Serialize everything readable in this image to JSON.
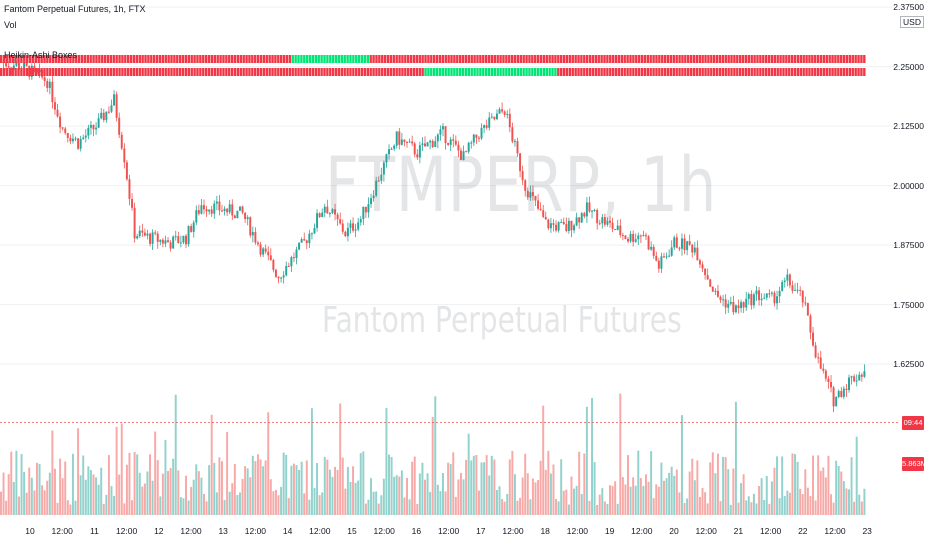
{
  "legend": {
    "title": "Fantom Perpetual Futures, 1h, FTX",
    "volume": "Vol",
    "indicator": "Heikin-Ashi Boxes"
  },
  "watermark": {
    "symbol": "FTMPERP, 1h",
    "description": "Fantom Perpetual Futures"
  },
  "axis": {
    "currency": "USD",
    "price_ticks": [
      "2.37500",
      "2.25000",
      "2.12500",
      "2.00000",
      "1.87500",
      "1.75000",
      "1.62500"
    ],
    "countdown_badge": "09:44",
    "volume_badge": "5.863M",
    "time_labels": [
      "10",
      "12:00",
      "11",
      "12:00",
      "12",
      "12:00",
      "13",
      "12:00",
      "14",
      "12:00",
      "15",
      "12:00",
      "16",
      "12:00",
      "17",
      "12:00",
      "18",
      "12:00",
      "19",
      "12:00",
      "20",
      "12:00",
      "21",
      "12:00",
      "22",
      "12:00",
      "23"
    ]
  },
  "colors": {
    "up": "#26a69a",
    "down": "#ef5350",
    "band_bull": "#00e676",
    "band_bear": "#f23645",
    "grid": "#eef0f3"
  },
  "chart_data": {
    "type": "candlestick",
    "title": "Fantom Perpetual Futures, 1h, FTX",
    "interval": "1h",
    "xlabel": "",
    "ylabel": "",
    "ylim": [
      1.56,
      2.39
    ],
    "grid": true,
    "key_prices": [
      {
        "t": 0,
        "close": 2.26
      },
      {
        "t": 8,
        "close": 2.25
      },
      {
        "t": 18,
        "close": 2.22
      },
      {
        "t": 24,
        "close": 2.12
      },
      {
        "t": 30,
        "close": 2.09
      },
      {
        "t": 38,
        "close": 2.13
      },
      {
        "t": 44,
        "close": 2.18
      },
      {
        "t": 48,
        "close": 2.06
      },
      {
        "t": 52,
        "close": 1.9
      },
      {
        "t": 58,
        "close": 1.89
      },
      {
        "t": 66,
        "close": 1.88
      },
      {
        "t": 72,
        "close": 1.89
      },
      {
        "t": 78,
        "close": 1.96
      },
      {
        "t": 86,
        "close": 1.95
      },
      {
        "t": 94,
        "close": 1.94
      },
      {
        "t": 102,
        "close": 1.86
      },
      {
        "t": 108,
        "close": 1.81
      },
      {
        "t": 118,
        "close": 1.88
      },
      {
        "t": 126,
        "close": 1.96
      },
      {
        "t": 134,
        "close": 1.9
      },
      {
        "t": 140,
        "close": 1.93
      },
      {
        "t": 148,
        "close": 2.03
      },
      {
        "t": 154,
        "close": 2.1
      },
      {
        "t": 162,
        "close": 2.07
      },
      {
        "t": 172,
        "close": 2.11
      },
      {
        "t": 180,
        "close": 2.06
      },
      {
        "t": 186,
        "close": 2.11
      },
      {
        "t": 196,
        "close": 2.16
      },
      {
        "t": 204,
        "close": 2.0
      },
      {
        "t": 212,
        "close": 1.92
      },
      {
        "t": 220,
        "close": 1.91
      },
      {
        "t": 228,
        "close": 1.95
      },
      {
        "t": 236,
        "close": 1.92
      },
      {
        "t": 244,
        "close": 1.89
      },
      {
        "t": 250,
        "close": 1.9
      },
      {
        "t": 256,
        "close": 1.83
      },
      {
        "t": 262,
        "close": 1.88
      },
      {
        "t": 270,
        "close": 1.87
      },
      {
        "t": 278,
        "close": 1.77
      },
      {
        "t": 286,
        "close": 1.74
      },
      {
        "t": 294,
        "close": 1.77
      },
      {
        "t": 300,
        "close": 1.76
      },
      {
        "t": 306,
        "close": 1.8
      },
      {
        "t": 312,
        "close": 1.76
      },
      {
        "t": 318,
        "close": 1.63
      },
      {
        "t": 324,
        "close": 1.55
      },
      {
        "t": 330,
        "close": 1.59
      },
      {
        "t": 336,
        "close": 1.61
      }
    ],
    "last_price": 1.565,
    "volume_last": "5.863M",
    "bands": [
      {
        "name": "row1",
        "green_range_fraction": [
          0.335,
          0.425
        ]
      },
      {
        "name": "row2",
        "green_range_fraction": [
          0.49,
          0.64
        ]
      }
    ]
  }
}
